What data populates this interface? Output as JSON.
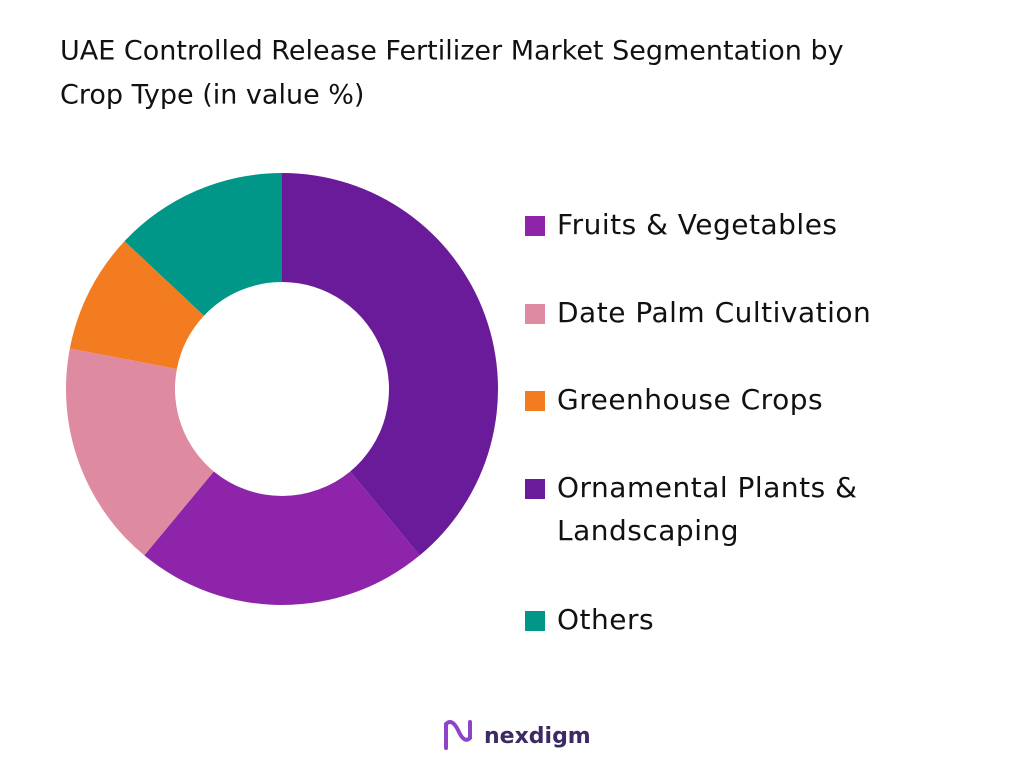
{
  "chart_data": {
    "type": "donut",
    "title_lines": [
      "UAE Controlled Release Fertilizer Market Segmentation by",
      "Crop Type (in value %)"
    ],
    "series": [
      {
        "name": "Fruits & Vegetables",
        "color": "#8e24aa",
        "value": 22
      },
      {
        "name": "Date Palm Cultivation",
        "color": "#de8aa0",
        "value": 17
      },
      {
        "name": "Greenhouse Crops",
        "color": "#f47c20",
        "value": 9
      },
      {
        "name_lines": [
          "Ornamental Plants &",
          "Landscaping"
        ],
        "color": "#6a1b9a",
        "value": 39
      },
      {
        "name": "Others",
        "color": "#009688",
        "value": 13
      }
    ],
    "logo": "nexdigm"
  }
}
